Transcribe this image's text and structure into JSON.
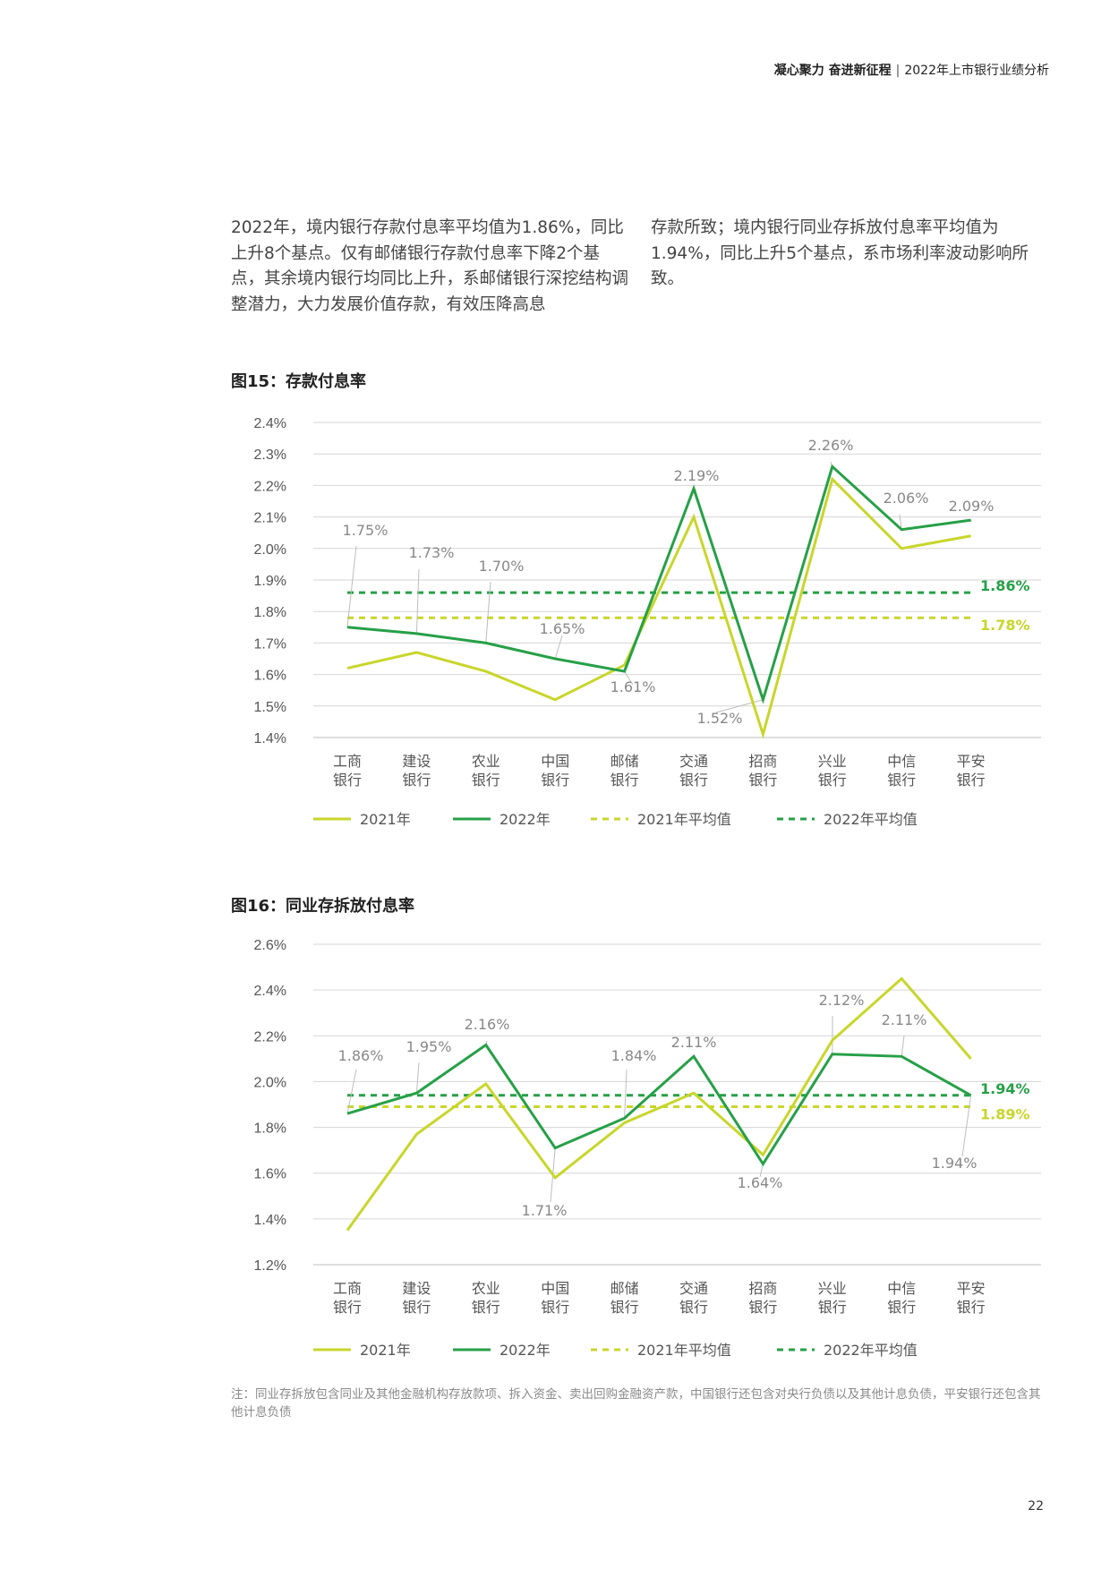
{
  "header": {
    "bold": "凝心聚力 奋进新征程",
    "separator": "|",
    "subtitle": "2022年上市银行业绩分析"
  },
  "paragraph": {
    "left": "2022年，境内银行存款付息率平均值为1.86%，同比上升8个基点。仅有邮储银行存款付息率下降2个基点，其余境内银行均同比上升，系邮储银行深挖结构调整潜力，大力发展价值存款，有效压降高息",
    "right": "存款所致；境内银行同业存拆放付息率平均值为1.94%，同比上升5个基点，系市场利率波动影响所致。"
  },
  "chart_data": [
    {
      "type": "line",
      "title": "图15：存款付息率",
      "categories": [
        "工商\n银行",
        "建设\n银行",
        "农业\n银行",
        "中国\n银行",
        "邮储\n银行",
        "交通\n银行",
        "招商\n银行",
        "兴业\n银行",
        "中信\n银行",
        "平安\n银行"
      ],
      "yticks": [
        "2.4%",
        "2.3%",
        "2.2%",
        "2.1%",
        "2.0%",
        "1.9%",
        "1.8%",
        "1.7%",
        "1.6%",
        "1.5%",
        "1.4%"
      ],
      "ylim": [
        1.4,
        2.4
      ],
      "grid": true,
      "legend_position": "bottom",
      "series": [
        {
          "name": "2021年",
          "color": "#c8d62b",
          "style": "solid",
          "values": [
            1.62,
            1.67,
            1.61,
            1.52,
            1.63,
            2.1,
            1.41,
            2.22,
            2.0,
            2.04
          ]
        },
        {
          "name": "2022年",
          "color": "#26a047",
          "style": "solid",
          "values": [
            1.75,
            1.73,
            1.7,
            1.65,
            1.61,
            2.19,
            1.52,
            2.26,
            2.06,
            2.09
          ]
        },
        {
          "name": "2021年平均值",
          "color": "#c8d62b",
          "style": "dashed",
          "value": 1.78
        },
        {
          "name": "2022年平均值",
          "color": "#26a047",
          "style": "dashed",
          "value": 1.86
        }
      ],
      "point_labels": [
        "1.75%",
        "1.73%",
        "1.70%",
        "1.65%",
        "1.61%",
        "2.19%",
        "1.52%",
        "2.26%",
        "2.06%",
        "2.09%"
      ],
      "average_labels": [
        "1.78%",
        "1.86%"
      ]
    },
    {
      "type": "line",
      "title": "图16：同业存拆放付息率",
      "categories": [
        "工商\n银行",
        "建设\n银行",
        "农业\n银行",
        "中国\n银行",
        "邮储\n银行",
        "交通\n银行",
        "招商\n银行",
        "兴业\n银行",
        "中信\n银行",
        "平安\n银行"
      ],
      "yticks": [
        "2.6%",
        "2.4%",
        "2.2%",
        "2.0%",
        "1.8%",
        "1.6%",
        "1.4%",
        "1.2%"
      ],
      "ylim": [
        1.2,
        2.6
      ],
      "grid": true,
      "legend_position": "bottom",
      "series": [
        {
          "name": "2021年",
          "color": "#c8d62b",
          "style": "solid",
          "values": [
            1.35,
            1.77,
            1.99,
            1.58,
            1.82,
            1.95,
            1.68,
            2.18,
            2.45,
            2.1
          ]
        },
        {
          "name": "2022年",
          "color": "#26a047",
          "style": "solid",
          "values": [
            1.86,
            1.95,
            2.16,
            1.71,
            1.84,
            2.11,
            1.64,
            2.12,
            2.11,
            1.94
          ]
        },
        {
          "name": "2021年平均值",
          "color": "#c8d62b",
          "style": "dashed",
          "value": 1.89
        },
        {
          "name": "2022年平均值",
          "color": "#26a047",
          "style": "dashed",
          "value": 1.94
        }
      ],
      "point_labels": [
        "1.86%",
        "1.95%",
        "2.16%",
        "1.71%",
        "1.84%",
        "2.11%",
        "1.64%",
        "2.12%",
        "2.11%",
        "1.94%"
      ],
      "average_labels": [
        "1.89%",
        "1.94%"
      ]
    }
  ],
  "note": "注：同业存拆放包含同业及其他金融机构存放款项、拆入资金、卖出回购金融资产款，中国银行还包含对央行负债以及其他计息负债，平安银行还包含其他计息负债",
  "page_number": "22"
}
